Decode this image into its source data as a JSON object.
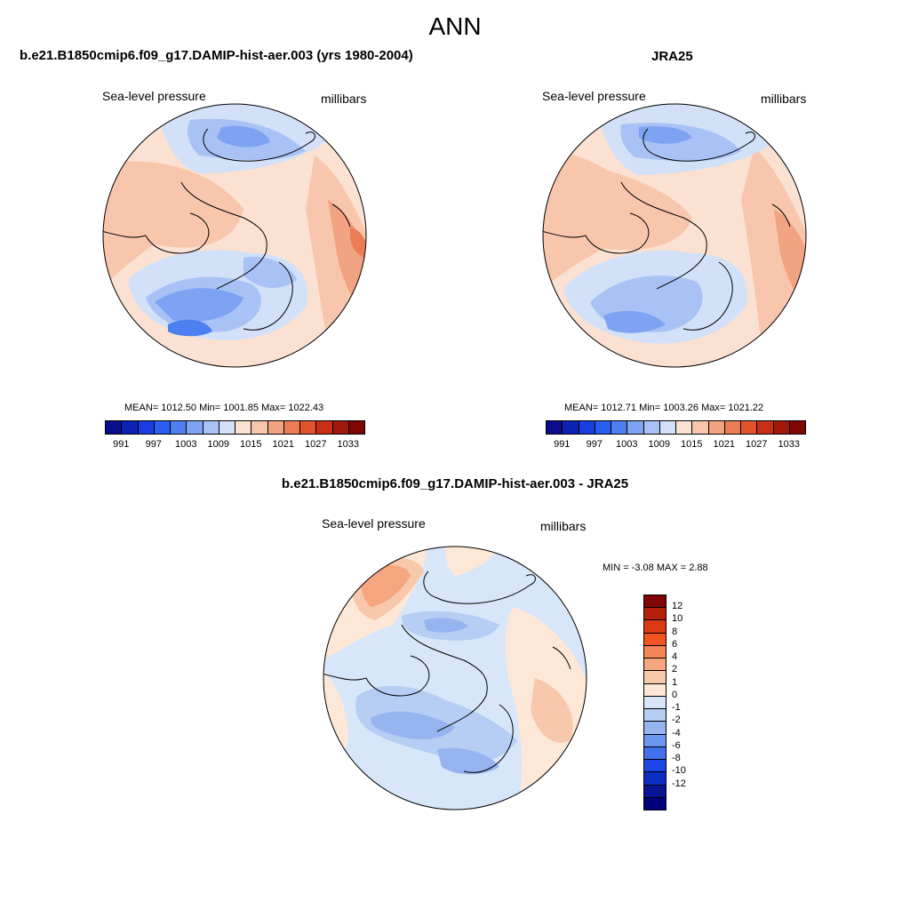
{
  "title": "ANN",
  "panels": [
    {
      "title": "b.e21.B1850cmip6.f09_g17.DAMIP-hist-aer.003 (yrs 1980-2004)",
      "left_label": "Sea-level pressure",
      "right_label": "millibars",
      "stats": "MEAN= 1012.50  Min= 1001.85  Max= 1022.43"
    },
    {
      "title": "JRA25",
      "left_label": "Sea-level pressure",
      "right_label": "millibars",
      "stats": "MEAN= 1012.71  Min= 1003.26  Max= 1021.22"
    },
    {
      "title": "b.e21.B1850cmip6.f09_g17.DAMIP-hist-aer.003 - JRA25",
      "left_label": "Sea-level pressure",
      "right_label": "millibars",
      "stats": "MIN =  -3.08 MAX =   2.88"
    }
  ],
  "colorbar_abs": {
    "colors": [
      "#0b0e8c",
      "#0a23b5",
      "#1a3de0",
      "#2a5ef0",
      "#4d7ff0",
      "#7ea3f2",
      "#a9c2f5",
      "#d2e1f8",
      "#fbe1d2",
      "#f8c6ad",
      "#f2a381",
      "#ec7c55",
      "#e2522e",
      "#c72e14",
      "#a0180a",
      "#800505"
    ],
    "labels": [
      "991",
      "997",
      "1003",
      "1009",
      "1015",
      "1021",
      "1027",
      "1033"
    ]
  },
  "colorbar_diff": {
    "colors": [
      "#800505",
      "#b5200a",
      "#dc3814",
      "#f25522",
      "#f58457",
      "#f6a67f",
      "#f7c8ab",
      "#fde8d8",
      "#d7e6f9",
      "#b6cdf4",
      "#96b4f0",
      "#6f96ee",
      "#4371ee",
      "#1c47e6",
      "#0e2ec3",
      "#071493",
      "#00007c"
    ],
    "labels": [
      "12",
      "10",
      "8",
      "6",
      "4",
      "2",
      "1",
      "0",
      "-1",
      "-2",
      "-4",
      "-6",
      "-8",
      "-10",
      "-12"
    ]
  }
}
